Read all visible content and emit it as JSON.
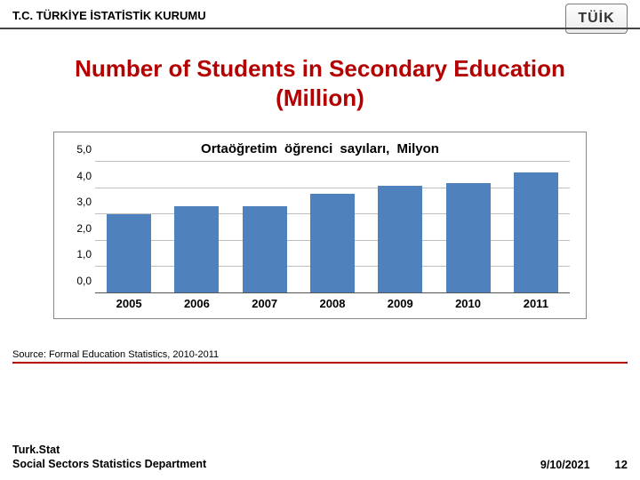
{
  "header": {
    "institution": "T.C. TÜRKİYE İSTATİSTİK KURUMU",
    "logo_text": "TÜİK",
    "divider_color": "#444444"
  },
  "title": {
    "text": "Number of Students in Secondary Education (Million)",
    "color": "#b40000",
    "fontsize": 26
  },
  "chart": {
    "type": "bar",
    "title": "Ortaöğretim  öğrenci  sayıları,  Milyon",
    "title_fontsize": 15,
    "categories": [
      "2005",
      "2006",
      "2007",
      "2008",
      "2009",
      "2010",
      "2011"
    ],
    "values": [
      3.0,
      3.3,
      3.3,
      3.8,
      4.1,
      4.2,
      4.6
    ],
    "bar_color": "#4f81bd",
    "ylim": [
      0,
      5
    ],
    "yticks": [
      "0,0",
      "1,0",
      "2,0",
      "3,0",
      "4,0",
      "5,0"
    ],
    "ytick_values": [
      0,
      1,
      2,
      3,
      4,
      5
    ],
    "grid_color": "#bfbfbf",
    "background_color": "#ffffff",
    "border_color": "#888888",
    "tick_fontsize": 12,
    "xtick_fontsize": 13
  },
  "source": {
    "text": "Source: Formal Education Statistics, 2010-2011",
    "fontsize": 11
  },
  "footer": {
    "org_line1": "Turk.Stat",
    "org_line2": "Social Sectors Statistics Department",
    "date": "9/10/2021",
    "page": "12",
    "divider_color": "#b40000"
  }
}
